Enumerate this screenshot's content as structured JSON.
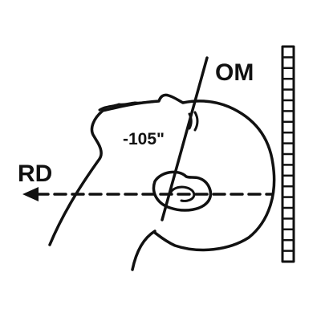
{
  "labels": {
    "om": "OM",
    "rd": "RD",
    "angle": "-105\""
  },
  "colors": {
    "ink": "#111111",
    "background": "#ffffff"
  }
}
